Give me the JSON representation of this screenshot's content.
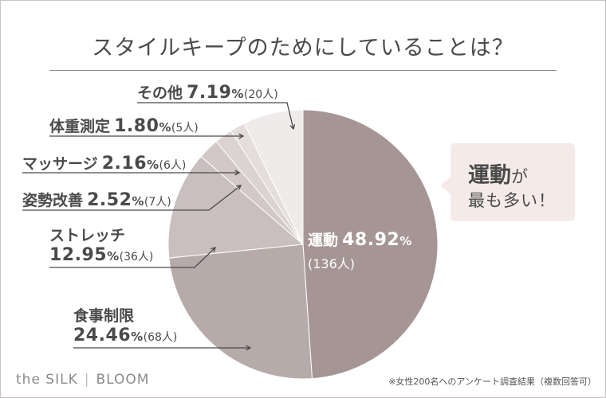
{
  "title": "スタイルキープのためにしていることは？",
  "chart_data": {
    "type": "pie",
    "title": "スタイルキープのためにしていることは？",
    "slices": [
      {
        "name": "運動",
        "percent": 48.92,
        "count": "(136人)",
        "percent_label": "48.92",
        "color": "#a59695"
      },
      {
        "name": "食事制限",
        "percent": 24.46,
        "count": "(68人)",
        "percent_label": "24.46",
        "color": "#b7abaa"
      },
      {
        "name": "ストレッチ",
        "percent": 12.95,
        "count": "(36人)",
        "percent_label": "12.95",
        "color": "#c9bfbe"
      },
      {
        "name": "姿勢改善",
        "percent": 2.52,
        "count": "(7人)",
        "percent_label": "2.52",
        "color": "#d1c8c7"
      },
      {
        "name": "マッサージ",
        "percent": 2.16,
        "count": "(6人)",
        "percent_label": "2.16",
        "color": "#dad3d2"
      },
      {
        "name": "体重測定",
        "percent": 1.8,
        "count": "(5人)",
        "percent_label": "1.80",
        "color": "#e3dddc"
      },
      {
        "name": "その他",
        "percent": 7.19,
        "count": "(20人)",
        "percent_label": "7.19",
        "color": "#efebea"
      }
    ],
    "percent_unit": "%"
  },
  "callout": {
    "line1_bold": "運動",
    "line1_rest": "が",
    "line2": "最も多い！"
  },
  "brand": {
    "left": "the SILK",
    "right": "BLOOM"
  },
  "footnote": "※女性200名へのアンケート調査結果（複数回答可）"
}
